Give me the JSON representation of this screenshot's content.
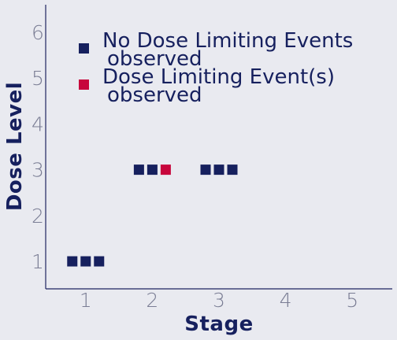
{
  "chart_data": {
    "type": "scatter",
    "xlabel": "Stage",
    "ylabel": "Dose Level",
    "xlim": [
      0.4,
      5.6
    ],
    "ylim": [
      0.4,
      6.6
    ],
    "xticks": [
      1,
      2,
      3,
      4,
      5
    ],
    "yticks": [
      1,
      2,
      3,
      4,
      5,
      6
    ],
    "grid": false,
    "legend_placement": "top-left",
    "series": [
      {
        "name": "No Dose Limiting Events observed",
        "name_lines": [
          "No Dose Limiting Events",
          "observed"
        ],
        "color": "#16205e",
        "points": [
          {
            "x": 1,
            "y": 1,
            "offset": -1
          },
          {
            "x": 1,
            "y": 1,
            "offset": 0
          },
          {
            "x": 1,
            "y": 1,
            "offset": 1
          },
          {
            "x": 2,
            "y": 3,
            "offset": -1
          },
          {
            "x": 2,
            "y": 3,
            "offset": 0
          },
          {
            "x": 3,
            "y": 3,
            "offset": -1
          },
          {
            "x": 3,
            "y": 3,
            "offset": 0
          },
          {
            "x": 3,
            "y": 3,
            "offset": 1
          }
        ]
      },
      {
        "name": "Dose Limiting Event(s) observed",
        "name_lines": [
          "Dose Limiting Event(s)",
          "observed"
        ],
        "color": "#c7063c",
        "points": [
          {
            "x": 2,
            "y": 3,
            "offset": 1
          }
        ]
      }
    ]
  },
  "colors": {
    "background": "#e9eaf0",
    "axis": "#1f2560",
    "tick_text": "#7a7d94",
    "title_text": "#16205e"
  }
}
